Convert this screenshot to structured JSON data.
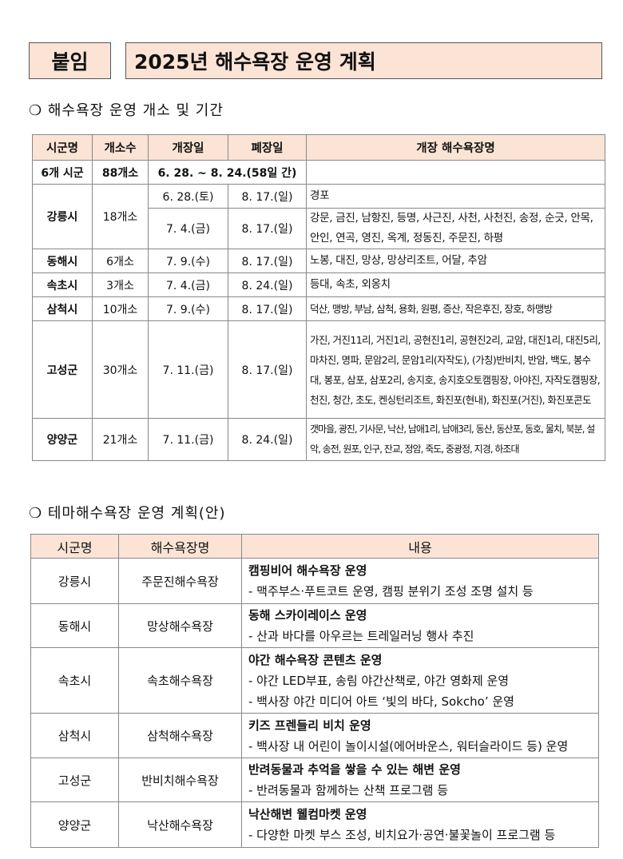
{
  "header": {
    "tag": "붙임",
    "title": "2025년 해수욕장 운영 계획"
  },
  "section1": {
    "heading": "❍ 해수욕장 운영 개소 및 기간",
    "columns": [
      "시군명",
      "개소수",
      "개장일",
      "폐장일",
      "개장 해수욕장명"
    ],
    "total": {
      "city": "6개 시군",
      "count": "88개소",
      "period": "6. 28. ~ 8. 24.(58일 간)"
    },
    "rows": [
      {
        "city": "강릉시",
        "count": "18개소",
        "sub": [
          {
            "open": "6. 28.(토)",
            "close": "8. 17.(일)",
            "beaches": "경포"
          },
          {
            "open": "7. 4.(금)",
            "close": "8. 17.(일)",
            "beaches": "강문, 금진, 남항진, 등명, 사근진, 사천, 사천진, 송정, 순긋, 안목, 안인, 연곡, 영진, 옥계, 정동진, 주문진, 하평"
          }
        ]
      },
      {
        "city": "동해시",
        "count": "6개소",
        "open": "7. 9.(수)",
        "close": "8. 17.(일)",
        "beaches": "노봉, 대진, 망상, 망상리조트, 어달, 추암"
      },
      {
        "city": "속초시",
        "count": "3개소",
        "open": "7. 4.(금)",
        "close": "8. 24.(일)",
        "beaches": "등대, 속초, 외옹치"
      },
      {
        "city": "삼척시",
        "count": "10개소",
        "open": "7. 9.(수)",
        "close": "8. 17.(일)",
        "beaches": "덕산, 맹방, 부남, 삼척, 용화, 원평, 증산, 작은후진, 장호, 하맹방"
      },
      {
        "city": "고성군",
        "count": "30개소",
        "open": "7. 11.(금)",
        "close": "8. 17.(일)",
        "beaches": "가진, 거진11리, 거진1리, 공현진1리, 공현진2리, 교암, 대진1리, 대진5리, 마차진, 명파, 문암2리, 문암1리(자작도), (가칭)반비치, 반암, 백도, 봉수대, 봉포, 삼포, 삼포2리, 송지호, 송지호오토캠핑장, 아야진, 자작도캠핑장, 천진, 청간, 초도, 켄싱턴리조트, 화진포(현내), 화진포(거진), 화진포콘도"
      },
      {
        "city": "양양군",
        "count": "21개소",
        "open": "7. 11.(금)",
        "close": "8. 24.(일)",
        "beaches": "갯마을, 광진, 기사문, 낙산, 남애1리, 남애3리, 동산, 동산포, 동호, 물치, 북분, 설악, 송전, 원포, 인구, 잔교, 정암, 죽도, 중광정, 지경, 하조대"
      }
    ]
  },
  "section2": {
    "heading": "❍ 테마해수욕장 운영 계획(안)",
    "columns": [
      "시군명",
      "해수욕장명",
      "내용"
    ],
    "rows": [
      {
        "city": "강릉시",
        "beach": "주문진해수욕장",
        "title": "캠핑비어 해수욕장 운영",
        "details": [
          "- 맥주부스·푸트코트 운영, 캠핑 분위기 조성 조명 설치 등"
        ]
      },
      {
        "city": "동해시",
        "beach": "망상해수욕장",
        "title": "동해 스카이레이스 운영",
        "details": [
          "- 산과 바다를 아우르는 트레일러닝 행사 추진"
        ]
      },
      {
        "city": "속초시",
        "beach": "속초해수욕장",
        "title": "야간 해수욕장 콘텐츠 운영",
        "details": [
          "- 야간 LED부표, 송림 야간산책로, 야간 영화제 운영",
          "- 백사장 야간 미디어 아트 ‘빛의 바다, Sokcho’ 운영"
        ]
      },
      {
        "city": "삼척시",
        "beach": "삼척해수욕장",
        "title": "키즈 프렌들리 비치 운영",
        "details": [
          "- 백사장 내 어린이 놀이시설(에어바운스, 워터슬라이드 등) 운영"
        ]
      },
      {
        "city": "고성군",
        "beach": "반비치해수욕장",
        "title": "반려동물과 추억을 쌓을 수 있는 해변 운영",
        "details": [
          "- 반려동물과 함께하는 산책 프로그램 등"
        ]
      },
      {
        "city": "양양군",
        "beach": "낙산해수욕장",
        "title": "낙산해변 웰컴마켓 운영",
        "details": [
          "- 다양한 마켓 부스 조성, 비치요가·공연·불꽃놀이 프로그램 등"
        ]
      }
    ]
  }
}
